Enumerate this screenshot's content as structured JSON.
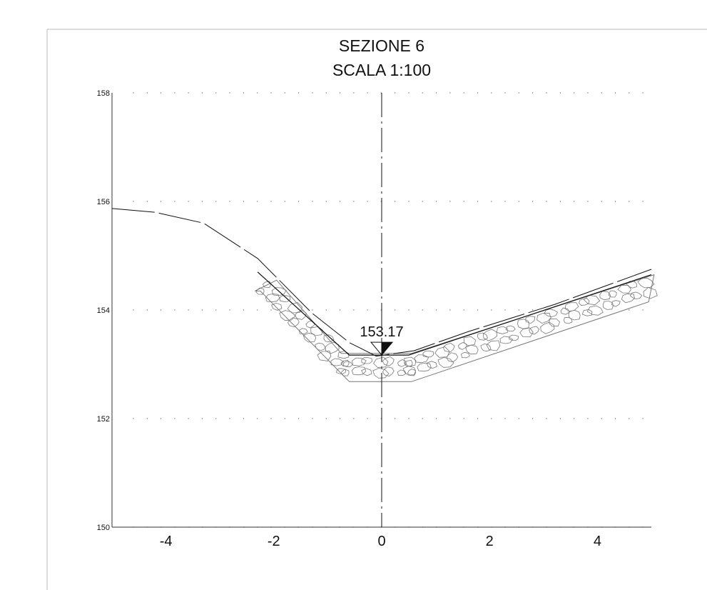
{
  "drawing": {
    "title": "SEZIONE 6",
    "scale": "SCALA 1:100"
  },
  "chart_data": {
    "type": "line",
    "xlim": [
      -5,
      5
    ],
    "ylim": [
      150,
      158
    ],
    "x_ticks": [
      "-4",
      "-2",
      "0",
      "2",
      "4"
    ],
    "y_ticks": [
      "150",
      "152",
      "154",
      "156",
      "158"
    ],
    "grid": "dotted",
    "centerline_x": 0,
    "water_level": {
      "x": 0,
      "y": 153.17,
      "label": "153.17"
    },
    "terrain": {
      "x": [
        -5,
        -4.2,
        -3.3,
        -2.3,
        -1.9,
        -1.3,
        -0.6,
        -0.1,
        0.6,
        1.6,
        3.2,
        5
      ],
      "y": [
        155.87,
        155.8,
        155.6,
        154.95,
        154.55,
        153.95,
        153.4,
        153.15,
        153.25,
        153.6,
        154.1,
        154.75
      ]
    },
    "design_profile": {
      "x": [
        -2.3,
        -0.6,
        0.5,
        5
      ],
      "y": [
        154.7,
        153.17,
        153.17,
        154.65
      ]
    },
    "riprap_outline": {
      "x": [
        -2.35,
        -1.95,
        -0.75,
        0.55,
        5.05,
        4.95,
        0.55,
        -0.6,
        -2.25
      ],
      "y": [
        154.35,
        154.55,
        153.2,
        153.2,
        154.65,
        154.15,
        152.68,
        152.68,
        154.35
      ]
    }
  }
}
